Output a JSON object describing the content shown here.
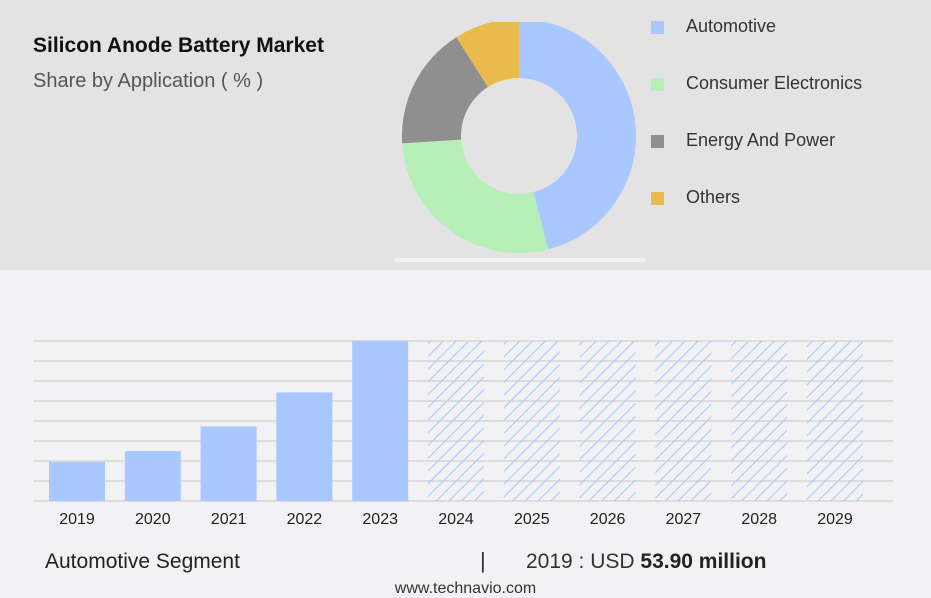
{
  "colors": {
    "automotive": "#a9c8ff",
    "consumer_electronics": "#b6f0b6",
    "energy_and_power": "#8f8f8f",
    "others": "#e8bb4c",
    "forecast_hatch": "#a9c8ff",
    "gridline": "#c8c8c8"
  },
  "header": {
    "title": "Silicon Anode Battery Market",
    "subtitle": "Share by Application ( % )"
  },
  "chart_data": [
    {
      "type": "donut",
      "categories": [
        "Automotive",
        "Consumer Electronics",
        "Energy And Power",
        "Others"
      ],
      "values": [
        46,
        28,
        17,
        9
      ],
      "legend_position": "right"
    },
    {
      "type": "bar",
      "categories": [
        "2019",
        "2020",
        "2021",
        "2022",
        "2023",
        "2024",
        "2025",
        "2026",
        "2027",
        "2028",
        "2029"
      ],
      "values": [
        53.9,
        69,
        103,
        150,
        221,
        221,
        221,
        221,
        221,
        221,
        221
      ],
      "forecast_from": "2024",
      "grid": true,
      "ylim": [
        0,
        221
      ]
    }
  ],
  "footer": {
    "segment": "Automotive Segment",
    "separator": "|",
    "stat_prefix": "2019 : USD",
    "stat_value": "53.90 million"
  },
  "source": "www.technavio.com"
}
